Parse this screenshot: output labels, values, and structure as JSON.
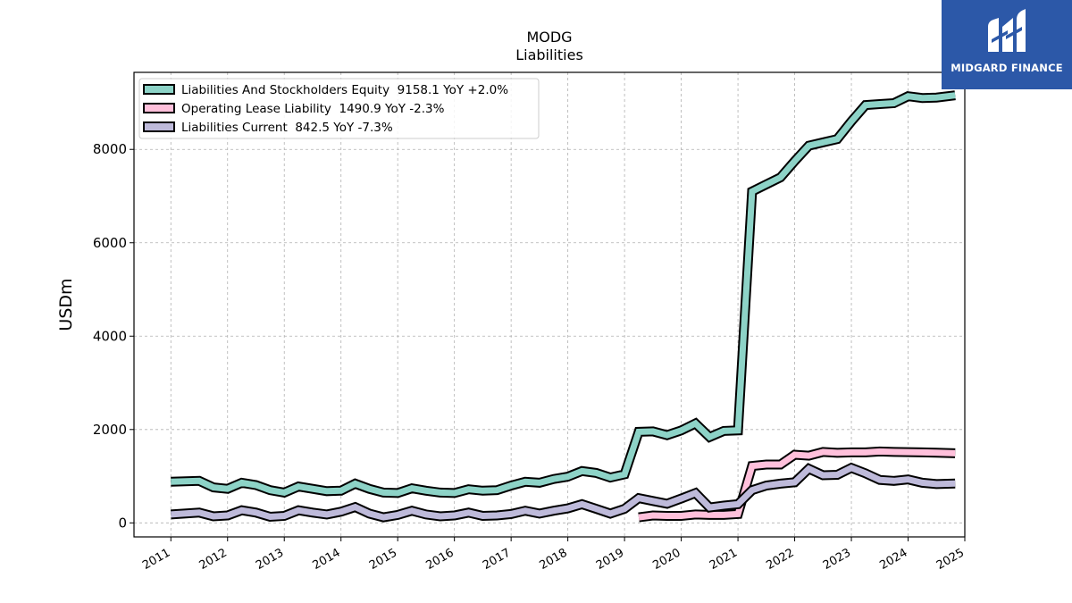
{
  "logo": {
    "text": "MIDGARD FINANCE",
    "background": "#2c58a8",
    "icon": "midgard-finance-logo-icon"
  },
  "chart_data": {
    "type": "line",
    "title": "MODG",
    "subtitle": "Liabilities",
    "xlabel": "",
    "ylabel": "USDm",
    "xlim": [
      2010.35,
      2025.0
    ],
    "ylim": [
      -300,
      9650
    ],
    "x_ticks": [
      "2011",
      "2012",
      "2013",
      "2014",
      "2015",
      "2016",
      "2017",
      "2018",
      "2019",
      "2020",
      "2021",
      "2022",
      "2023",
      "2024",
      "2025"
    ],
    "y_ticks": [
      0,
      2000,
      4000,
      6000,
      8000
    ],
    "grid": true,
    "legend_position": "top-left",
    "series": [
      {
        "name": "Liabilities And Stockholders Equity  9158.1 YoY +2.0%",
        "color": "#8dd3c7",
        "points": [
          [
            2011.0,
            880
          ],
          [
            2011.5,
            900
          ],
          [
            2011.75,
            760
          ],
          [
            2012.0,
            730
          ],
          [
            2012.25,
            860
          ],
          [
            2012.5,
            810
          ],
          [
            2012.75,
            700
          ],
          [
            2013.0,
            650
          ],
          [
            2013.25,
            780
          ],
          [
            2013.5,
            730
          ],
          [
            2013.75,
            680
          ],
          [
            2014.0,
            690
          ],
          [
            2014.25,
            840
          ],
          [
            2014.5,
            730
          ],
          [
            2014.75,
            650
          ],
          [
            2015.0,
            640
          ],
          [
            2015.25,
            740
          ],
          [
            2015.5,
            690
          ],
          [
            2015.75,
            650
          ],
          [
            2016.0,
            640
          ],
          [
            2016.25,
            720
          ],
          [
            2016.5,
            690
          ],
          [
            2016.75,
            700
          ],
          [
            2017.0,
            800
          ],
          [
            2017.25,
            880
          ],
          [
            2017.5,
            860
          ],
          [
            2017.75,
            940
          ],
          [
            2018.0,
            990
          ],
          [
            2018.25,
            1110
          ],
          [
            2018.5,
            1070
          ],
          [
            2018.75,
            970
          ],
          [
            2019.0,
            1040
          ],
          [
            2019.25,
            1950
          ],
          [
            2019.5,
            1960
          ],
          [
            2019.75,
            1880
          ],
          [
            2020.0,
            1980
          ],
          [
            2020.25,
            2130
          ],
          [
            2020.5,
            1840
          ],
          [
            2020.75,
            1970
          ],
          [
            2021.0,
            1980
          ],
          [
            2021.25,
            7100
          ],
          [
            2021.5,
            7250
          ],
          [
            2021.75,
            7400
          ],
          [
            2022.0,
            7750
          ],
          [
            2022.25,
            8080
          ],
          [
            2022.5,
            8150
          ],
          [
            2022.75,
            8220
          ],
          [
            2023.0,
            8600
          ],
          [
            2023.25,
            8950
          ],
          [
            2023.5,
            8970
          ],
          [
            2023.75,
            8990
          ],
          [
            2024.0,
            9140
          ],
          [
            2024.25,
            9100
          ],
          [
            2024.5,
            9110
          ],
          [
            2024.83,
            9158.1
          ]
        ]
      },
      {
        "name": "Operating Lease Liability  1490.9 YoY -2.3%",
        "color": "#ffc0db",
        "points": [
          [
            2019.25,
            120
          ],
          [
            2019.5,
            160
          ],
          [
            2019.75,
            150
          ],
          [
            2020.0,
            150
          ],
          [
            2020.25,
            180
          ],
          [
            2020.5,
            170
          ],
          [
            2020.75,
            170
          ],
          [
            2021.0,
            190
          ],
          [
            2021.25,
            1220
          ],
          [
            2021.5,
            1250
          ],
          [
            2021.75,
            1250
          ],
          [
            2022.0,
            1460
          ],
          [
            2022.25,
            1440
          ],
          [
            2022.5,
            1520
          ],
          [
            2022.75,
            1500
          ],
          [
            2023.0,
            1510
          ],
          [
            2023.25,
            1510
          ],
          [
            2023.5,
            1530
          ],
          [
            2023.75,
            1520
          ],
          [
            2024.0,
            1515
          ],
          [
            2024.25,
            1510
          ],
          [
            2024.5,
            1505
          ],
          [
            2024.83,
            1490.9
          ]
        ]
      },
      {
        "name": "Liabilities Current  842.5 YoY -7.3%",
        "color": "#bebada",
        "points": [
          [
            2011.0,
            180
          ],
          [
            2011.5,
            220
          ],
          [
            2011.75,
            140
          ],
          [
            2012.0,
            160
          ],
          [
            2012.25,
            270
          ],
          [
            2012.5,
            220
          ],
          [
            2012.75,
            130
          ],
          [
            2013.0,
            150
          ],
          [
            2013.25,
            270
          ],
          [
            2013.5,
            220
          ],
          [
            2013.75,
            180
          ],
          [
            2014.0,
            240
          ],
          [
            2014.25,
            340
          ],
          [
            2014.5,
            200
          ],
          [
            2014.75,
            120
          ],
          [
            2015.0,
            170
          ],
          [
            2015.25,
            260
          ],
          [
            2015.5,
            180
          ],
          [
            2015.75,
            140
          ],
          [
            2016.0,
            160
          ],
          [
            2016.25,
            220
          ],
          [
            2016.5,
            150
          ],
          [
            2016.75,
            160
          ],
          [
            2017.0,
            190
          ],
          [
            2017.25,
            260
          ],
          [
            2017.5,
            200
          ],
          [
            2017.75,
            260
          ],
          [
            2018.0,
            310
          ],
          [
            2018.25,
            400
          ],
          [
            2018.5,
            300
          ],
          [
            2018.75,
            200
          ],
          [
            2019.0,
            300
          ],
          [
            2019.25,
            530
          ],
          [
            2019.5,
            470
          ],
          [
            2019.75,
            410
          ],
          [
            2020.0,
            520
          ],
          [
            2020.25,
            640
          ],
          [
            2020.5,
            330
          ],
          [
            2020.75,
            370
          ],
          [
            2021.0,
            400
          ],
          [
            2021.25,
            700
          ],
          [
            2021.5,
            800
          ],
          [
            2021.75,
            840
          ],
          [
            2022.0,
            870
          ],
          [
            2022.25,
            1160
          ],
          [
            2022.5,
            1020
          ],
          [
            2022.75,
            1030
          ],
          [
            2023.0,
            1180
          ],
          [
            2023.25,
            1060
          ],
          [
            2023.5,
            920
          ],
          [
            2023.75,
            900
          ],
          [
            2024.0,
            930
          ],
          [
            2024.25,
            860
          ],
          [
            2024.5,
            830
          ],
          [
            2024.83,
            842.5
          ]
        ]
      }
    ]
  }
}
